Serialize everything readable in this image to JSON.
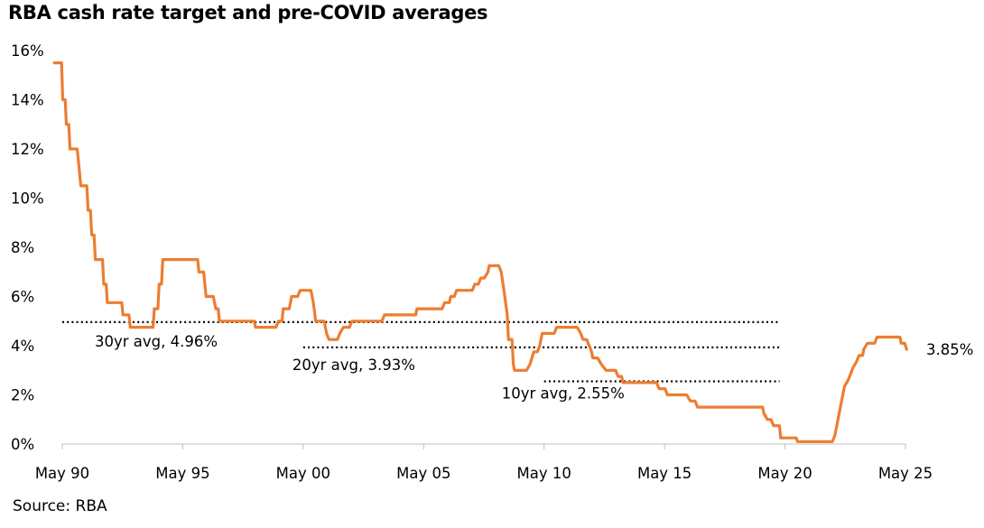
{
  "title": "RBA cash rate target and pre-COVID averages",
  "source": "Source: RBA",
  "colors": {
    "series": "#ED7D31",
    "axis": "#bfbfbf",
    "avg_line": "#000000"
  },
  "chart_data": {
    "type": "line",
    "title": "RBA cash rate target and pre-COVID averages",
    "ylim": [
      0,
      16
    ],
    "yticks": [
      0,
      2,
      4,
      6,
      8,
      10,
      12,
      14,
      16
    ],
    "ytick_labels": [
      "0%",
      "2%",
      "4%",
      "6%",
      "8%",
      "10%",
      "12%",
      "14%",
      "16%"
    ],
    "xlim": [
      1990.33,
      2025.42
    ],
    "xticks": [
      1990.33,
      1995.33,
      2000.33,
      2005.33,
      2010.33,
      2015.33,
      2020.33,
      2025.33
    ],
    "xtick_labels": [
      "May 90",
      "May 95",
      "May 00",
      "May 05",
      "May 10",
      "May 15",
      "May 20",
      "May 25"
    ],
    "grid": false,
    "series": [
      {
        "color": "#ED7D31",
        "points": [
          [
            1990.0,
            15.5
          ],
          [
            1990.3,
            15.5
          ],
          [
            1990.35,
            14.0
          ],
          [
            1990.45,
            14.0
          ],
          [
            1990.5,
            13.0
          ],
          [
            1990.6,
            13.0
          ],
          [
            1990.65,
            12.0
          ],
          [
            1990.95,
            12.0
          ],
          [
            1991.0,
            11.5
          ],
          [
            1991.1,
            10.5
          ],
          [
            1991.35,
            10.5
          ],
          [
            1991.4,
            9.5
          ],
          [
            1991.5,
            9.5
          ],
          [
            1991.55,
            8.5
          ],
          [
            1991.65,
            8.5
          ],
          [
            1991.7,
            7.5
          ],
          [
            1992.0,
            7.5
          ],
          [
            1992.05,
            6.5
          ],
          [
            1992.15,
            6.5
          ],
          [
            1992.2,
            5.75
          ],
          [
            1992.8,
            5.75
          ],
          [
            1992.85,
            5.25
          ],
          [
            1993.1,
            5.25
          ],
          [
            1993.15,
            4.75
          ],
          [
            1994.1,
            4.75
          ],
          [
            1994.15,
            5.5
          ],
          [
            1994.3,
            5.5
          ],
          [
            1994.35,
            6.5
          ],
          [
            1994.45,
            6.5
          ],
          [
            1994.5,
            7.5
          ],
          [
            1995.95,
            7.5
          ],
          [
            1996.0,
            7.0
          ],
          [
            1996.2,
            7.0
          ],
          [
            1996.3,
            6.0
          ],
          [
            1996.6,
            6.0
          ],
          [
            1996.7,
            5.5
          ],
          [
            1996.8,
            5.5
          ],
          [
            1996.85,
            5.0
          ],
          [
            1998.3,
            5.0
          ],
          [
            1998.35,
            4.75
          ],
          [
            1999.2,
            4.75
          ],
          [
            1999.3,
            5.0
          ],
          [
            1999.45,
            5.0
          ],
          [
            1999.5,
            5.5
          ],
          [
            1999.75,
            5.5
          ],
          [
            1999.85,
            6.0
          ],
          [
            2000.1,
            6.0
          ],
          [
            2000.2,
            6.25
          ],
          [
            2000.65,
            6.25
          ],
          [
            2000.75,
            5.75
          ],
          [
            2000.85,
            5.0
          ],
          [
            2001.2,
            5.0
          ],
          [
            2001.3,
            4.5
          ],
          [
            2001.4,
            4.25
          ],
          [
            2001.75,
            4.25
          ],
          [
            2001.85,
            4.5
          ],
          [
            2002.0,
            4.75
          ],
          [
            2002.25,
            4.75
          ],
          [
            2002.35,
            5.0
          ],
          [
            2003.6,
            5.0
          ],
          [
            2003.7,
            5.25
          ],
          [
            2005.0,
            5.25
          ],
          [
            2005.05,
            5.5
          ],
          [
            2006.1,
            5.5
          ],
          [
            2006.2,
            5.75
          ],
          [
            2006.4,
            5.75
          ],
          [
            2006.45,
            6.0
          ],
          [
            2006.6,
            6.0
          ],
          [
            2006.7,
            6.25
          ],
          [
            2007.35,
            6.25
          ],
          [
            2007.45,
            6.5
          ],
          [
            2007.6,
            6.5
          ],
          [
            2007.7,
            6.75
          ],
          [
            2007.85,
            6.75
          ],
          [
            2008.0,
            7.0
          ],
          [
            2008.05,
            7.25
          ],
          [
            2008.45,
            7.25
          ],
          [
            2008.55,
            7.0
          ],
          [
            2008.7,
            6.0
          ],
          [
            2008.8,
            5.25
          ],
          [
            2008.85,
            4.25
          ],
          [
            2009.0,
            4.25
          ],
          [
            2009.05,
            3.25
          ],
          [
            2009.1,
            3.0
          ],
          [
            2009.6,
            3.0
          ],
          [
            2009.75,
            3.25
          ],
          [
            2009.9,
            3.75
          ],
          [
            2010.05,
            3.75
          ],
          [
            2010.15,
            4.0
          ],
          [
            2010.2,
            4.25
          ],
          [
            2010.25,
            4.5
          ],
          [
            2010.75,
            4.5
          ],
          [
            2010.85,
            4.75
          ],
          [
            2011.7,
            4.75
          ],
          [
            2011.85,
            4.5
          ],
          [
            2011.95,
            4.25
          ],
          [
            2012.1,
            4.25
          ],
          [
            2012.2,
            4.0
          ],
          [
            2012.3,
            3.75
          ],
          [
            2012.35,
            3.5
          ],
          [
            2012.55,
            3.5
          ],
          [
            2012.7,
            3.25
          ],
          [
            2012.9,
            3.0
          ],
          [
            2013.3,
            3.0
          ],
          [
            2013.4,
            2.75
          ],
          [
            2013.55,
            2.75
          ],
          [
            2013.6,
            2.5
          ],
          [
            2015.0,
            2.5
          ],
          [
            2015.1,
            2.25
          ],
          [
            2015.35,
            2.25
          ],
          [
            2015.45,
            2.0
          ],
          [
            2016.25,
            2.0
          ],
          [
            2016.4,
            1.75
          ],
          [
            2016.6,
            1.75
          ],
          [
            2016.7,
            1.5
          ],
          [
            2019.4,
            1.5
          ],
          [
            2019.45,
            1.25
          ],
          [
            2019.6,
            1.0
          ],
          [
            2019.75,
            1.0
          ],
          [
            2019.85,
            0.75
          ],
          [
            2020.1,
            0.75
          ],
          [
            2020.15,
            0.25
          ],
          [
            2020.8,
            0.25
          ],
          [
            2020.85,
            0.1
          ],
          [
            2022.3,
            0.1
          ],
          [
            2022.4,
            0.35
          ],
          [
            2022.5,
            0.85
          ],
          [
            2022.6,
            1.35
          ],
          [
            2022.7,
            1.85
          ],
          [
            2022.8,
            2.35
          ],
          [
            2022.95,
            2.6
          ],
          [
            2023.05,
            2.85
          ],
          [
            2023.15,
            3.1
          ],
          [
            2023.3,
            3.35
          ],
          [
            2023.4,
            3.6
          ],
          [
            2023.55,
            3.6
          ],
          [
            2023.6,
            3.85
          ],
          [
            2023.75,
            4.1
          ],
          [
            2024.05,
            4.1
          ],
          [
            2024.15,
            4.35
          ],
          [
            2025.1,
            4.35
          ],
          [
            2025.15,
            4.1
          ],
          [
            2025.3,
            4.1
          ],
          [
            2025.38,
            3.85
          ]
        ]
      }
    ],
    "averages": [
      {
        "label": "30yr avg, 4.96%",
        "value": 4.96,
        "from": 1990.33,
        "to": 2020.33
      },
      {
        "label": "20yr avg, 3.93%",
        "value": 3.93,
        "from": 2000.33,
        "to": 2020.33
      },
      {
        "label": "10yr avg, 2.55%",
        "value": 2.55,
        "from": 2010.33,
        "to": 2020.33
      }
    ],
    "end_label": "3.85%"
  }
}
